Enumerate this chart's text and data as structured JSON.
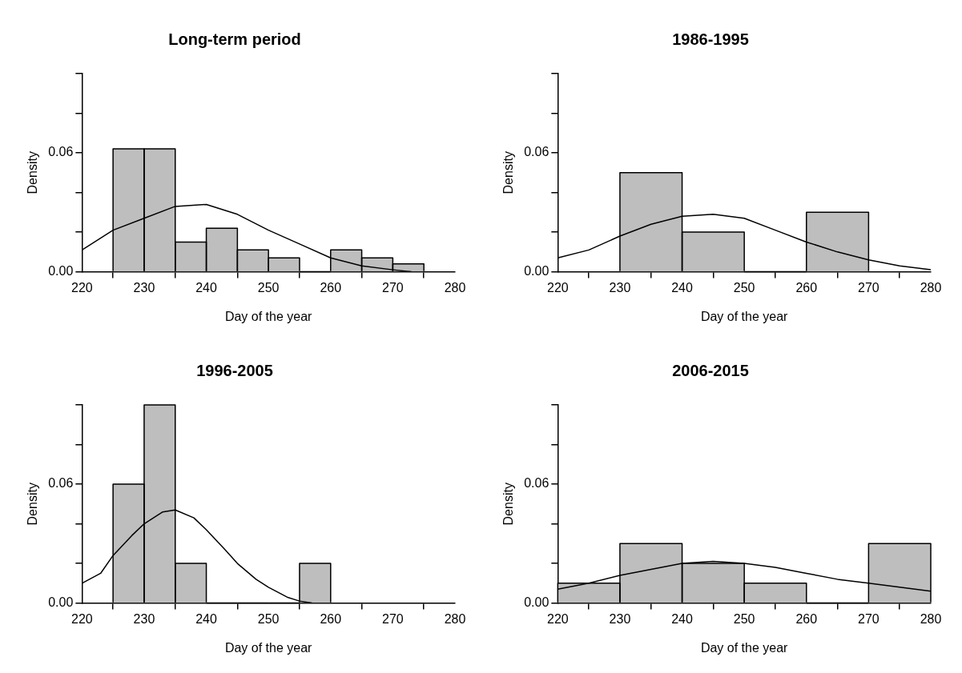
{
  "chart_data": [
    {
      "type": "histogram",
      "title": "Long-term period",
      "xlabel": "Day of the year",
      "ylabel": "Density",
      "color": "#bebebe",
      "bins": [
        225,
        230,
        235,
        240,
        245,
        250,
        255,
        260,
        265,
        270,
        275
      ],
      "values": [
        0.062,
        0.062,
        0.015,
        0.022,
        0.011,
        0.007,
        0,
        0.011,
        0.007,
        0.004
      ],
      "series": [
        {
          "type": "line",
          "color": "#000000",
          "x": [
            220,
            225,
            230,
            235,
            240,
            245,
            250,
            255,
            260,
            265,
            270,
            273
          ],
          "values": [
            0.011,
            0.021,
            0.027,
            0.033,
            0.034,
            0.029,
            0.021,
            0.014,
            0.007,
            0.003,
            0.001,
            0
          ]
        }
      ],
      "xlim": [
        220,
        280
      ],
      "ylim": [
        0,
        0.1
      ],
      "xticks": [
        220,
        230,
        240,
        250,
        260,
        270,
        280
      ],
      "yticks": [
        {
          "value": 0,
          "label": "0.00"
        },
        {
          "value": 0.02,
          "label": null
        },
        {
          "value": 0.04,
          "label": null
        },
        {
          "value": 0.06,
          "label": "0.06"
        },
        {
          "value": 0.08,
          "label": null
        },
        {
          "value": 0.1,
          "label": null
        }
      ],
      "grid": false,
      "legend": false
    },
    {
      "type": "histogram",
      "title": "1986-1995",
      "xlabel": "Day of the year",
      "ylabel": "Density",
      "color": "#bebebe",
      "bins": [
        230,
        240,
        250,
        260,
        270
      ],
      "values": [
        0.05,
        0.02,
        0,
        0.03
      ],
      "series": [
        {
          "type": "line",
          "color": "#000000",
          "x": [
            220,
            225,
            230,
            235,
            240,
            245,
            250,
            255,
            260,
            265,
            270,
            275,
            280
          ],
          "values": [
            0.007,
            0.011,
            0.018,
            0.024,
            0.028,
            0.029,
            0.027,
            0.021,
            0.015,
            0.01,
            0.006,
            0.003,
            0.001
          ]
        }
      ],
      "xlim": [
        220,
        280
      ],
      "ylim": [
        0,
        0.1
      ],
      "xticks": [
        220,
        230,
        240,
        250,
        260,
        270,
        280
      ],
      "yticks": [
        {
          "value": 0,
          "label": "0.00"
        },
        {
          "value": 0.02,
          "label": null
        },
        {
          "value": 0.04,
          "label": null
        },
        {
          "value": 0.06,
          "label": "0.06"
        },
        {
          "value": 0.08,
          "label": null
        },
        {
          "value": 0.1,
          "label": null
        }
      ],
      "grid": false,
      "legend": false
    },
    {
      "type": "histogram",
      "title": "1996-2005",
      "xlabel": "Day of the year",
      "ylabel": "Density",
      "color": "#bebebe",
      "bins": [
        225,
        230,
        235,
        240,
        245,
        250,
        255,
        260
      ],
      "values": [
        0.06,
        0.1,
        0.02,
        0,
        0,
        0,
        0.02
      ],
      "series": [
        {
          "type": "line",
          "color": "#000000",
          "x": [
            220,
            223,
            225,
            228,
            230,
            233,
            235,
            238,
            240,
            243,
            245,
            248,
            250,
            253,
            255,
            257
          ],
          "values": [
            0.01,
            0.015,
            0.024,
            0.034,
            0.04,
            0.046,
            0.047,
            0.043,
            0.037,
            0.027,
            0.02,
            0.012,
            0.008,
            0.003,
            0.001,
            0
          ]
        }
      ],
      "xlim": [
        220,
        280
      ],
      "ylim": [
        0,
        0.1
      ],
      "xticks": [
        220,
        230,
        240,
        250,
        260,
        270,
        280
      ],
      "yticks": [
        {
          "value": 0,
          "label": "0.00"
        },
        {
          "value": 0.02,
          "label": null
        },
        {
          "value": 0.04,
          "label": null
        },
        {
          "value": 0.06,
          "label": "0.06"
        },
        {
          "value": 0.08,
          "label": null
        },
        {
          "value": 0.1,
          "label": null
        }
      ],
      "grid": false,
      "legend": false
    },
    {
      "type": "histogram",
      "title": "2006-2015",
      "xlabel": "Day of the year",
      "ylabel": "Density",
      "color": "#bebebe",
      "bins": [
        220,
        230,
        240,
        250,
        260,
        270,
        280
      ],
      "values": [
        0.01,
        0.03,
        0.02,
        0.01,
        0,
        0.03
      ],
      "series": [
        {
          "type": "line",
          "color": "#000000",
          "x": [
            220,
            225,
            230,
            235,
            240,
            245,
            250,
            255,
            260,
            265,
            270,
            275,
            280
          ],
          "values": [
            0.007,
            0.01,
            0.014,
            0.017,
            0.02,
            0.021,
            0.02,
            0.018,
            0.015,
            0.012,
            0.01,
            0.008,
            0.006
          ]
        }
      ],
      "xlim": [
        220,
        280
      ],
      "ylim": [
        0,
        0.1
      ],
      "xticks": [
        220,
        230,
        240,
        250,
        260,
        270,
        280
      ],
      "yticks": [
        {
          "value": 0,
          "label": "0.00"
        },
        {
          "value": 0.02,
          "label": null
        },
        {
          "value": 0.04,
          "label": null
        },
        {
          "value": 0.06,
          "label": "0.06"
        },
        {
          "value": 0.08,
          "label": null
        },
        {
          "value": 0.1,
          "label": null
        }
      ],
      "grid": false,
      "legend": false
    }
  ]
}
